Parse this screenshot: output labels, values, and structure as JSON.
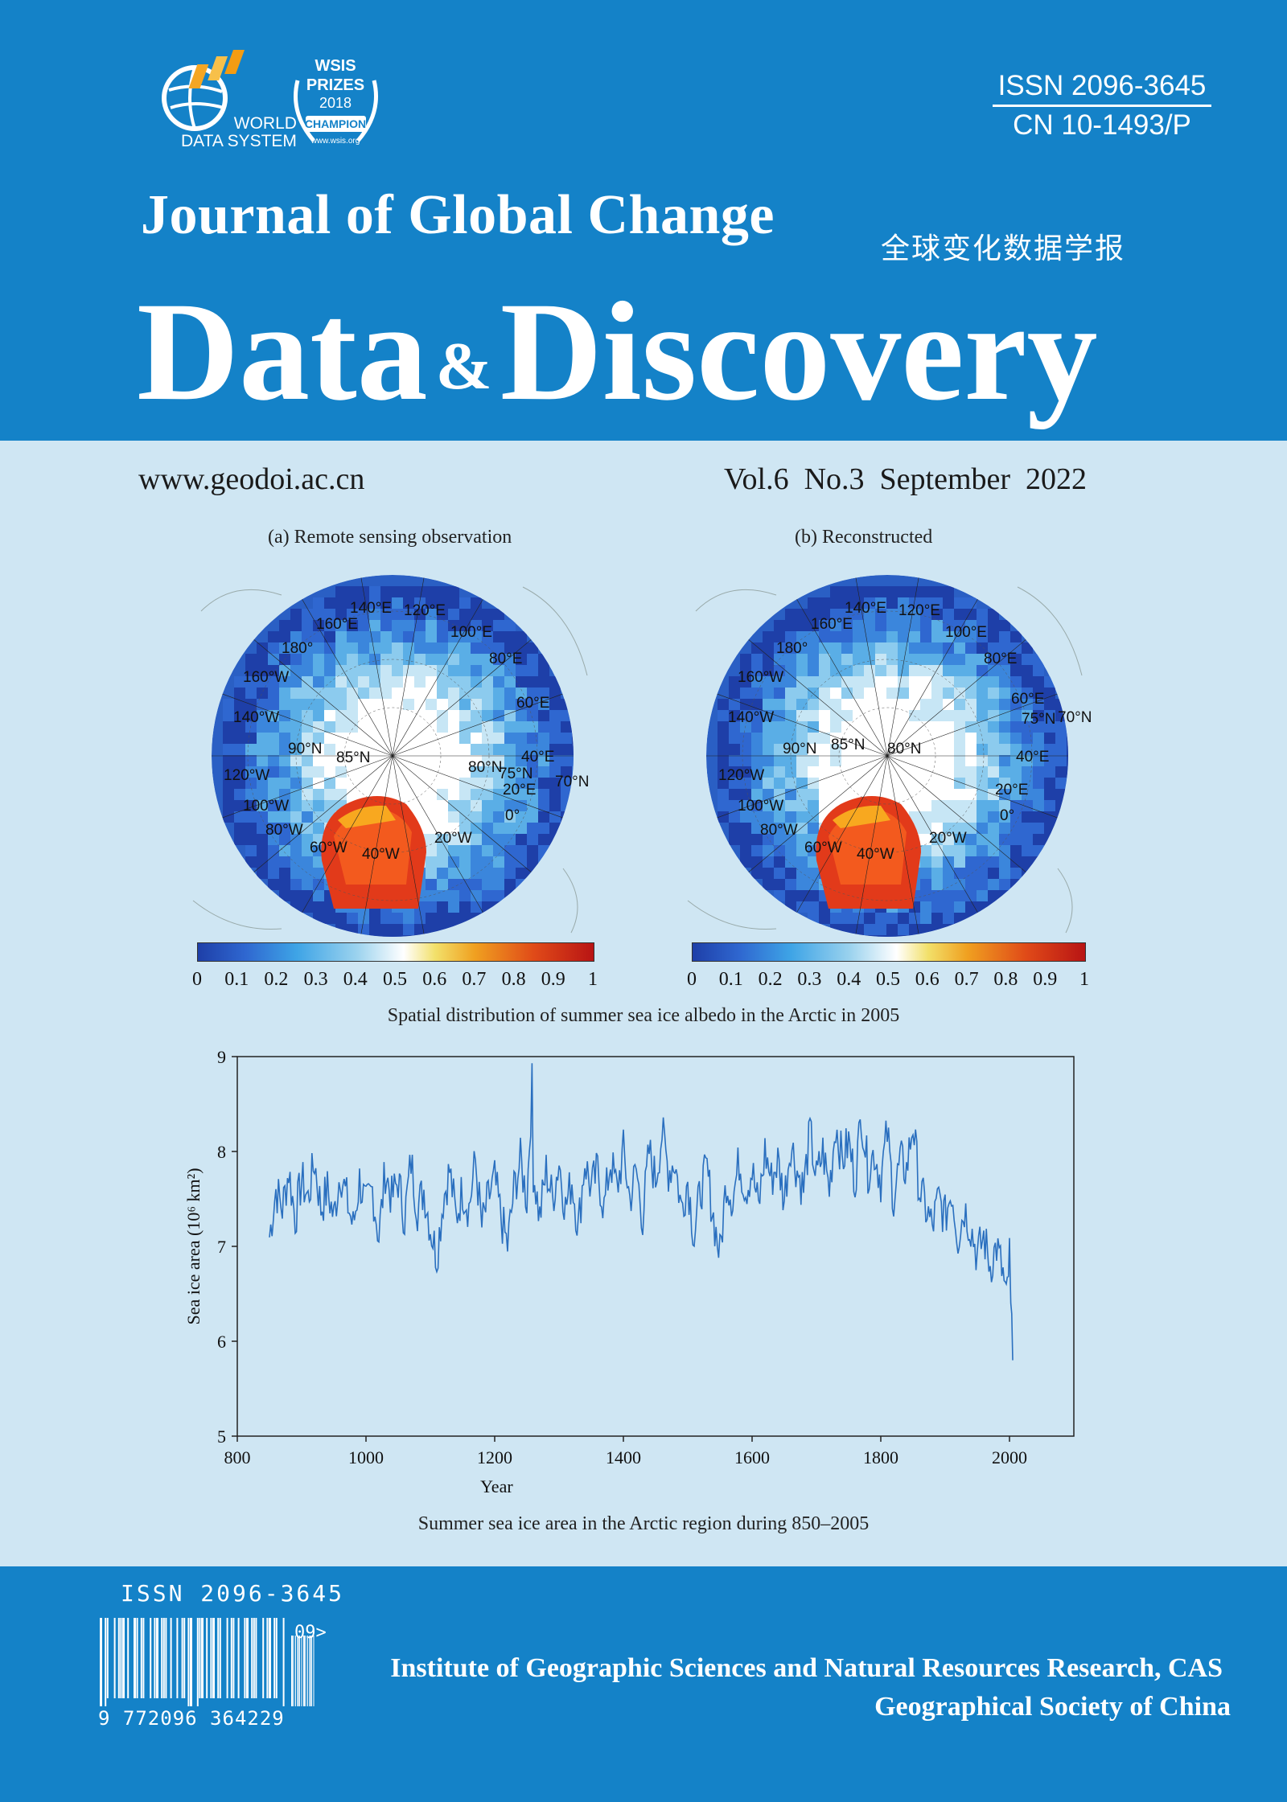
{
  "logos": {
    "wds": {
      "line1": "WORLD",
      "line2": "DATA SYSTEM"
    },
    "wsis": {
      "line1": "WSIS",
      "line2": "PRIZES",
      "line3": "2018",
      "line4": "CHAMPION",
      "line5": "www.wsis.org"
    }
  },
  "issn_block": {
    "issn": "ISSN 2096-3645",
    "cn": "CN 10-1493/P"
  },
  "journal": {
    "title_line1": "Journal of Global Change",
    "title_cn": "全球变化数据学报",
    "title_data": "Data",
    "title_amp": "&",
    "title_discovery": "Discovery"
  },
  "issue": {
    "url": "www.geodoi.ac.cn",
    "volume": "Vol.6  No.3  September  2022"
  },
  "figure1": {
    "caption": "Spatial distribution of summer sea ice albedo in the Arctic in 2005",
    "panel_a_title": "(a) Remote sensing observation",
    "panel_b_title": "(b) Reconstructed",
    "colorbar_ticks": [
      "0",
      "0.1",
      "0.2",
      "0.3",
      "0.4",
      "0.5",
      "0.6",
      "0.7",
      "0.8",
      "0.9",
      "1"
    ],
    "colorbar_colors": [
      "#1e3fa8",
      "#3ea4e6",
      "#ffffff",
      "#f0a020",
      "#b81414"
    ],
    "map_labels_a": [
      "140°E",
      "120°E",
      "160°E",
      "100°E",
      "180°",
      "80°E",
      "160°W",
      "60°E",
      "140°W",
      "90°N",
      "85°N",
      "40°E",
      "120°W",
      "80°N",
      "75°N",
      "70°N",
      "20°E",
      "100°W",
      "0°",
      "80°W",
      "20°W",
      "60°W",
      "40°W"
    ],
    "map_labels_b": [
      "140°E",
      "120°E",
      "160°E",
      "100°E",
      "180°",
      "80°E",
      "160°W",
      "60°E",
      "75°N",
      "70°N",
      "140°W",
      "90°N",
      "85°N",
      "80°N",
      "40°E",
      "120°W",
      "20°E",
      "100°W",
      "0°",
      "80°W",
      "20°W",
      "60°W",
      "40°W"
    ]
  },
  "chart_data": {
    "type": "line",
    "title": "",
    "xlabel": "Year",
    "ylabel": "Sea ice area (10⁶ km²)",
    "xlim": [
      800,
      2100
    ],
    "ylim": [
      5,
      9
    ],
    "xticks": [
      800,
      1000,
      1200,
      1400,
      1600,
      1800,
      2000
    ],
    "yticks": [
      5,
      6,
      7,
      8,
      9
    ],
    "line_color": "#2a6fbf",
    "grid": false,
    "series": [
      {
        "x": [
          850,
          860,
          870,
          880,
          890,
          900,
          910,
          920,
          930,
          940,
          950,
          960,
          970,
          980,
          990,
          1000,
          1010,
          1020,
          1030,
          1040,
          1050,
          1060,
          1070,
          1080,
          1090,
          1100,
          1110,
          1120,
          1130,
          1140,
          1150,
          1160,
          1170,
          1180,
          1190,
          1200,
          1210,
          1220,
          1230,
          1240,
          1250,
          1258,
          1260,
          1270,
          1280,
          1290,
          1300,
          1310,
          1320,
          1330,
          1340,
          1350,
          1360,
          1370,
          1380,
          1390,
          1400,
          1410,
          1420,
          1430,
          1440,
          1450,
          1460,
          1470,
          1480,
          1490,
          1500,
          1510,
          1520,
          1530,
          1540,
          1550,
          1560,
          1570,
          1580,
          1590,
          1600,
          1610,
          1620,
          1630,
          1640,
          1650,
          1660,
          1670,
          1680,
          1690,
          1700,
          1710,
          1720,
          1730,
          1740,
          1750,
          1760,
          1770,
          1780,
          1790,
          1800,
          1810,
          1820,
          1830,
          1840,
          1850,
          1860,
          1870,
          1880,
          1890,
          1900,
          1910,
          1920,
          1930,
          1940,
          1950,
          1960,
          1970,
          1980,
          1990,
          1995,
          2000,
          2002,
          2005
        ],
        "y": [
          7.1,
          7.6,
          7.4,
          7.8,
          7.3,
          7.7,
          7.5,
          7.9,
          7.4,
          7.6,
          7.3,
          7.8,
          7.5,
          7.2,
          7.7,
          7.4,
          7.6,
          7.1,
          7.8,
          7.5,
          7.7,
          7.3,
          7.9,
          7.4,
          7.6,
          7.2,
          6.9,
          7.5,
          7.8,
          7.3,
          7.6,
          7.4,
          7.9,
          7.2,
          7.5,
          7.7,
          7.3,
          7.0,
          7.6,
          7.9,
          7.5,
          8.7,
          7.8,
          7.3,
          7.8,
          7.5,
          7.9,
          7.4,
          7.7,
          7.2,
          7.9,
          7.6,
          7.8,
          7.4,
          7.9,
          7.6,
          8.0,
          7.5,
          7.8,
          7.3,
          8.0,
          7.7,
          8.2,
          7.8,
          7.9,
          7.4,
          7.7,
          7.1,
          7.6,
          7.8,
          7.3,
          6.9,
          7.7,
          7.5,
          7.9,
          7.6,
          7.8,
          7.4,
          8.0,
          7.7,
          7.9,
          7.5,
          8.1,
          7.8,
          7.6,
          8.2,
          7.7,
          8.0,
          7.6,
          8.3,
          7.9,
          8.1,
          7.7,
          8.4,
          7.8,
          8.0,
          7.7,
          8.2,
          7.5,
          7.9,
          7.8,
          8.3,
          7.6,
          7.4,
          7.2,
          7.5,
          7.3,
          7.6,
          7.1,
          7.4,
          7.2,
          6.9,
          7.1,
          6.8,
          7.0,
          6.7,
          6.4,
          6.9,
          6.3,
          5.8
        ],
        "name": ""
      }
    ]
  },
  "figure2": {
    "caption": "Summer sea ice area in the Arctic region during 850–2005"
  },
  "footer": {
    "issn": "ISSN 2096-3645",
    "barcode_digits": "9 772096 364229",
    "addon": "09>",
    "publisher1": "Institute of Geographic Sciences and Natural Resources Research, CAS",
    "publisher2": "Geographical Society of China"
  }
}
